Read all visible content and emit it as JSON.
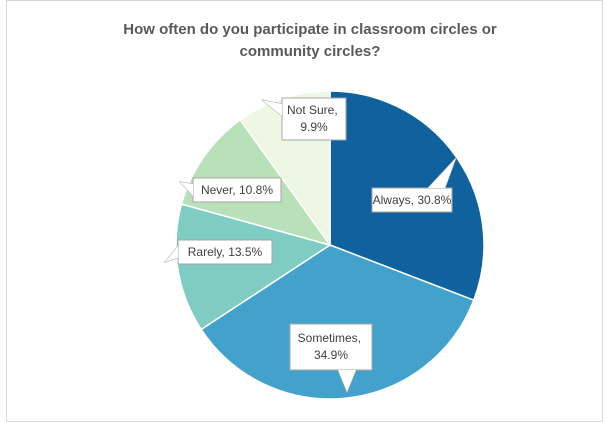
{
  "chart_data": {
    "type": "pie",
    "title": "How often do you participate in classroom circles or community circles?",
    "categories": [
      "Always",
      "Sometimes",
      "Rarely",
      "Never",
      "Not Sure"
    ],
    "values": [
      30.8,
      34.9,
      13.5,
      10.8,
      9.9
    ],
    "value_labels": [
      "Always, 30.8%",
      "Sometimes, 34.9%",
      "Rarely, 13.5%",
      "Never, 10.8%",
      "Not Sure, 9.9%"
    ],
    "colors": [
      "#10629f",
      "#43a2cb",
      "#7fccc3",
      "#b9e1b9",
      "#eef6e4"
    ]
  }
}
